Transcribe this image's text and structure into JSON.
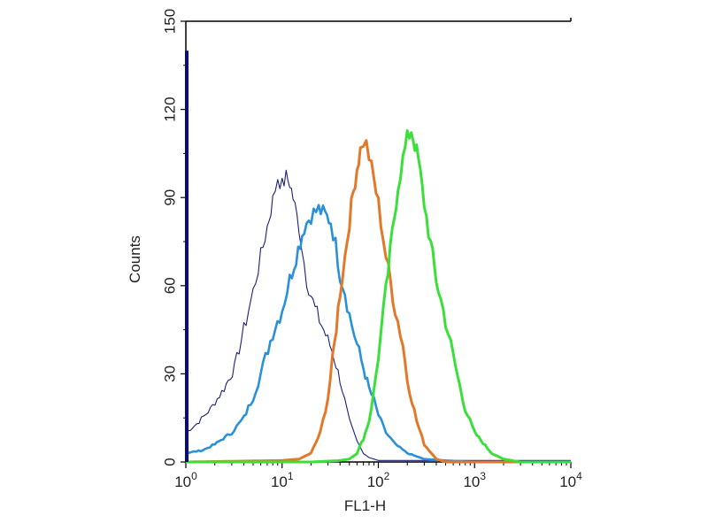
{
  "chart_data": {
    "type": "line",
    "title": "",
    "xlabel": "FL1-H",
    "ylabel": "Counts",
    "xscale": "log",
    "xlim": [
      1,
      10000
    ],
    "ylim": [
      0,
      150
    ],
    "grid": false,
    "legend": "none",
    "x_ticks": [
      {
        "base": "10",
        "exp": "0"
      },
      {
        "base": "10",
        "exp": "1"
      },
      {
        "base": "10",
        "exp": "2"
      },
      {
        "base": "10",
        "exp": "3"
      },
      {
        "base": "10",
        "exp": "4"
      }
    ],
    "y_ticks": [
      "0",
      "30",
      "60",
      "90",
      "120",
      "150"
    ],
    "series": [
      {
        "color": "#1a1f7a",
        "stroke": "thin",
        "x": [
          1,
          1.3,
          1.8,
          2.5,
          3.2,
          4,
          5,
          6,
          7,
          8,
          9,
          10,
          11,
          12,
          13,
          15,
          18,
          22,
          27,
          33,
          40,
          50,
          60,
          70,
          80,
          90,
          100,
          150,
          200,
          500,
          1000,
          10000
        ],
        "y": [
          10,
          13,
          18,
          25,
          32,
          45,
          58,
          70,
          80,
          89,
          97,
          94,
          97,
          95,
          90,
          80,
          62,
          52,
          45,
          38,
          28,
          14,
          7,
          3,
          1.5,
          1,
          0.5,
          0.5,
          0.5,
          0.5,
          0.5,
          0.5
        ]
      },
      {
        "color": "#2a90d8",
        "stroke": "medium",
        "x": [
          1,
          1.5,
          2,
          3,
          4,
          5,
          6,
          8,
          10,
          12,
          14,
          17,
          20,
          24,
          28,
          32,
          36,
          40,
          45,
          50,
          60,
          70,
          80,
          90,
          100,
          120,
          150,
          200,
          300,
          500,
          1000,
          10000
        ],
        "y": [
          3,
          4,
          6,
          10,
          15,
          22,
          30,
          44,
          52,
          62,
          70,
          80,
          84,
          86,
          84,
          82,
          74,
          64,
          58,
          50,
          40,
          32,
          25,
          21,
          16,
          10,
          6,
          3,
          1,
          0.5,
          0,
          0
        ]
      },
      {
        "color": "#e2782a",
        "stroke": "thick",
        "x": [
          1,
          10,
          15,
          20,
          25,
          30,
          35,
          40,
          45,
          50,
          55,
          60,
          65,
          70,
          75,
          80,
          90,
          100,
          120,
          150,
          180,
          200,
          250,
          300,
          400,
          500,
          700,
          1000,
          10000
        ],
        "y": [
          0,
          0.5,
          1,
          3,
          10,
          22,
          40,
          58,
          70,
          82,
          92,
          100,
          106,
          109,
          108,
          104,
          96,
          88,
          70,
          52,
          40,
          28,
          14,
          6,
          1,
          0,
          0,
          0,
          0
        ]
      },
      {
        "color": "#3adf3a",
        "stroke": "thick",
        "x": [
          1,
          20,
          40,
          50,
          60,
          70,
          80,
          90,
          100,
          120,
          140,
          160,
          180,
          200,
          220,
          240,
          260,
          300,
          350,
          400,
          500,
          600,
          700,
          800,
          1000,
          1500,
          2000,
          3000,
          10000
        ],
        "y": [
          0,
          0,
          0.5,
          1,
          3,
          8,
          14,
          24,
          36,
          58,
          78,
          94,
          103,
          110,
          113,
          108,
          103,
          88,
          74,
          62,
          48,
          36,
          26,
          18,
          10,
          3,
          1,
          0,
          0
        ]
      },
      {
        "color": "#0a0a80",
        "stroke": "spike",
        "x": [
          1,
          1.005,
          1.01
        ],
        "y": [
          140,
          140,
          0
        ]
      }
    ]
  }
}
